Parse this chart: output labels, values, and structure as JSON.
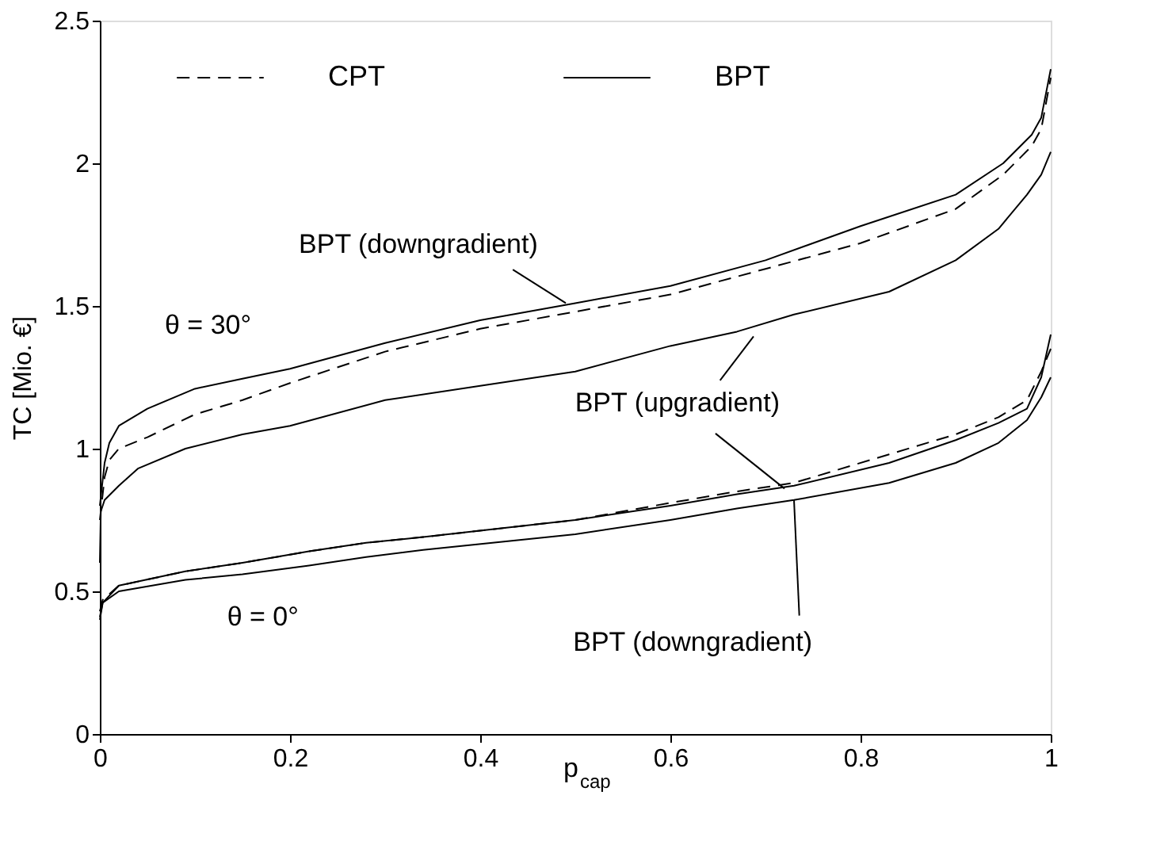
{
  "chart_data": {
    "type": "line",
    "ylabel": "TC  [Mio. €]",
    "xlabel": "p$_{cap}$",
    "xlim": [
      0,
      1
    ],
    "ylim": [
      0,
      2.5
    ],
    "xticks": [
      0,
      0.2,
      0.4,
      0.6,
      0.8,
      1
    ],
    "yticks": [
      0,
      0.5,
      1,
      1.5,
      2,
      2.5
    ],
    "grid": false,
    "legend": "top",
    "marker": "none",
    "series": [
      {
        "name": "CPT",
        "color": "#000000",
        "line_style": "dashed",
        "x": [
          0,
          0.005,
          0.01,
          0.02,
          0.05,
          0.1,
          0.15,
          0.2,
          0.3,
          0.4,
          0.5,
          0.6,
          0.7,
          0.8,
          0.9,
          0.95,
          0.98,
          0.99,
          1.0
        ],
        "values": [
          0.75,
          0.9,
          0.96,
          1.0,
          1.04,
          1.12,
          1.17,
          1.23,
          1.34,
          1.42,
          1.48,
          1.54,
          1.63,
          1.72,
          1.84,
          1.96,
          2.06,
          2.12,
          2.3
        ]
      },
      {
        "name": "BPT",
        "color": "#000000",
        "line_style": "solid",
        "x": [
          0,
          0.005,
          0.01,
          0.02,
          0.05,
          0.1,
          0.15,
          0.2,
          0.3,
          0.4,
          0.5,
          0.6,
          0.7,
          0.8,
          0.9,
          0.95,
          0.98,
          0.99,
          1.0
        ],
        "values": [
          0.8,
          0.95,
          1.02,
          1.08,
          1.14,
          1.21,
          1.245,
          1.28,
          1.37,
          1.45,
          1.51,
          1.57,
          1.66,
          1.78,
          1.89,
          2.0,
          2.1,
          2.16,
          2.33
        ]
      },
      {
        "color": "#000000",
        "line_style": "solid",
        "x": [
          0,
          0.001,
          0.005,
          0.02,
          0.04,
          0.09,
          0.15,
          0.2,
          0.3,
          0.4,
          0.5,
          0.6,
          0.67,
          0.73,
          0.83,
          0.9,
          0.945,
          0.975,
          0.99,
          1.0
        ],
        "values": [
          0.6,
          0.78,
          0.82,
          0.87,
          0.93,
          1.0,
          1.05,
          1.08,
          1.17,
          1.22,
          1.27,
          1.36,
          1.41,
          1.47,
          1.55,
          1.66,
          1.77,
          1.89,
          1.96,
          2.04
        ]
      },
      {
        "color": "#000000",
        "line_style": "dashed",
        "x": [
          0,
          0.003,
          0.02,
          0.09,
          0.15,
          0.22,
          0.28,
          0.34,
          0.5,
          0.6,
          0.67,
          0.73,
          0.83,
          0.9,
          0.945,
          0.975,
          0.99,
          1.0
        ],
        "values": [
          0.43,
          0.47,
          0.52,
          0.57,
          0.6,
          0.64,
          0.67,
          0.69,
          0.75,
          0.81,
          0.85,
          0.88,
          0.98,
          1.05,
          1.11,
          1.17,
          1.27,
          1.35
        ]
      },
      {
        "color": "#000000",
        "line_style": "solid",
        "x": [
          0,
          0.003,
          0.02,
          0.09,
          0.15,
          0.22,
          0.28,
          0.34,
          0.5,
          0.6,
          0.67,
          0.73,
          0.83,
          0.9,
          0.945,
          0.975,
          0.99,
          1.0
        ],
        "values": [
          0.41,
          0.46,
          0.52,
          0.57,
          0.6,
          0.64,
          0.67,
          0.69,
          0.75,
          0.8,
          0.84,
          0.87,
          0.95,
          1.03,
          1.09,
          1.14,
          1.25,
          1.4
        ]
      },
      {
        "color": "#000000",
        "line_style": "solid",
        "x": [
          0,
          0.003,
          0.02,
          0.09,
          0.15,
          0.22,
          0.28,
          0.34,
          0.5,
          0.6,
          0.67,
          0.73,
          0.83,
          0.9,
          0.945,
          0.975,
          0.99,
          1.0
        ],
        "values": [
          0.4,
          0.46,
          0.5,
          0.54,
          0.56,
          0.59,
          0.62,
          0.645,
          0.7,
          0.75,
          0.79,
          0.82,
          0.88,
          0.95,
          1.02,
          1.1,
          1.18,
          1.25
        ]
      }
    ],
    "annotations": [
      {
        "text": "BPT (downgradient)",
        "x": 0.49,
        "y": 1.51
      },
      "θ = 30°",
      {
        "text": "BPT (upgradient)",
        "x": 0.72,
        "y": 0.86
      },
      "θ = 0°",
      {
        "text": "BPT (downgradient)",
        "x": 0.73,
        "y": 0.82
      }
    ]
  }
}
